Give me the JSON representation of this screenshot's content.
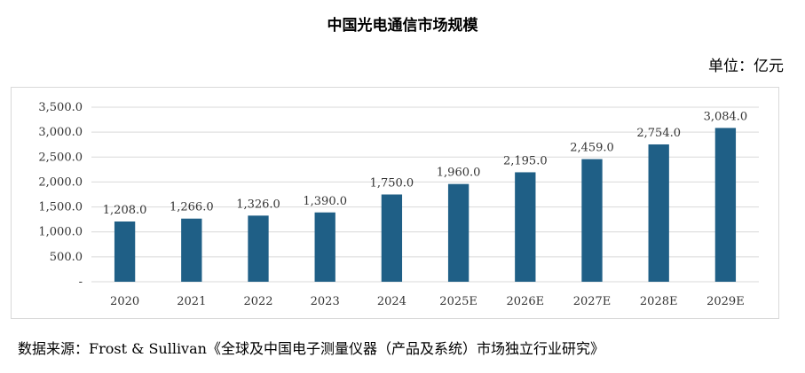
{
  "chart_data": {
    "type": "bar",
    "title": "中国光电通信市场规模",
    "unit_label": "单位：亿元",
    "categories": [
      "2020",
      "2021",
      "2022",
      "2023",
      "2024",
      "2025E",
      "2026E",
      "2027E",
      "2028E",
      "2029E"
    ],
    "values": [
      1208.0,
      1266.0,
      1326.0,
      1390.0,
      1750.0,
      1960.0,
      2195.0,
      2459.0,
      2754.0,
      3084.0
    ],
    "data_labels": [
      "1,208.0",
      "1,266.0",
      "1,326.0",
      "1,390.0",
      "1,750.0",
      "1,960.0",
      "2,195.0",
      "2,459.0",
      "2,754.0",
      "3,084.0"
    ],
    "ylim": [
      0,
      3500
    ],
    "yticks": [
      0,
      500,
      1000,
      1500,
      2000,
      2500,
      3000,
      3500
    ],
    "ytick_labels": [
      "-",
      "500.0",
      "1,000.0",
      "1,500.0",
      "2,000.0",
      "2,500.0",
      "3,000.0",
      "3,500.0"
    ],
    "grid": true,
    "bar_color": "#1f5f86",
    "grid_color": "#d9d9d9",
    "source": "数据来源：Frost & Sullivan《全球及中国电子测量仪器（产品及系统）市场独立行业研究》"
  }
}
